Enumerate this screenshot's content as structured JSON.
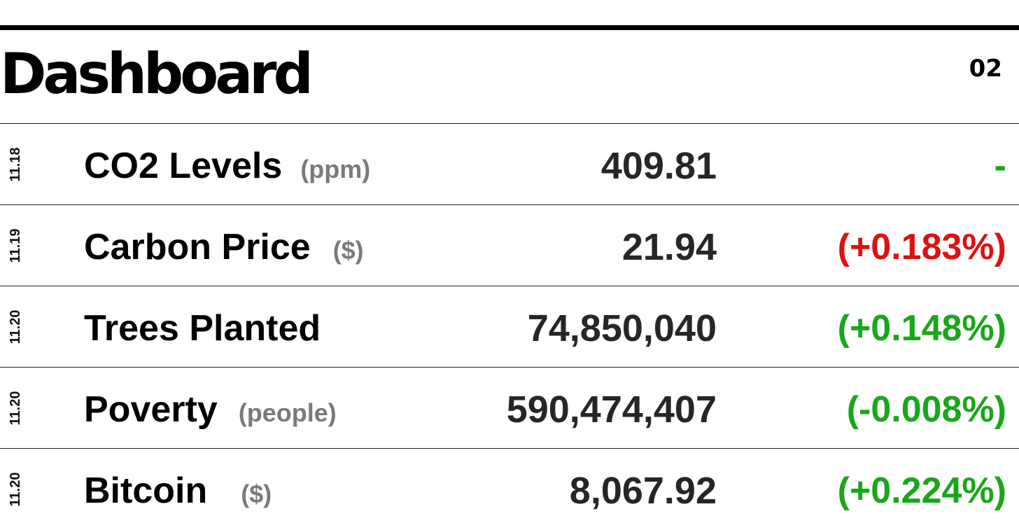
{
  "header": {
    "title": "Dashboard",
    "page_number": "02"
  },
  "colors": {
    "positive": "#1aa61a",
    "negative": "#dd1111",
    "unit": "#7a7a7a",
    "rule": "#000000"
  },
  "rows": [
    {
      "date": "11.18",
      "label": "CO2 Levels",
      "unit": "(ppm)",
      "value": "409.81",
      "change": "-",
      "change_color": "positive"
    },
    {
      "date": "11.19",
      "label": "Carbon Price",
      "unit": "($)",
      "value": "21.94",
      "change": "(+0.183%)",
      "change_color": "negative"
    },
    {
      "date": "11.20",
      "label": "Trees Planted",
      "unit": "",
      "value": "74,850,040",
      "change": "(+0.148%)",
      "change_color": "positive"
    },
    {
      "date": "11.20",
      "label": "Poverty",
      "unit": "(people)",
      "value": "590,474,407",
      "change": "(-0.008%)",
      "change_color": "positive"
    },
    {
      "date": "11.20",
      "label": "Bitcoin",
      "unit": "($)",
      "value": "8,067.92",
      "change": "(+0.224%)",
      "change_color": "positive"
    }
  ]
}
